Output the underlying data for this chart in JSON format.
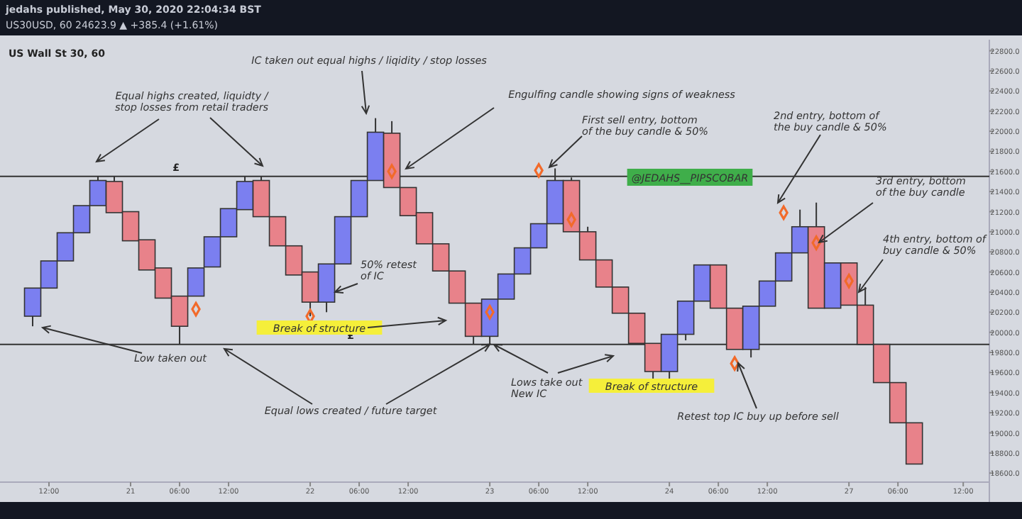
{
  "chart_data": {
    "type": "candlestick",
    "title": "US Wall St 30, 60",
    "categories": [
      null,
      "12:00",
      null,
      null,
      null,
      null,
      "21",
      null,
      null,
      "06:00",
      null,
      null,
      "12:00",
      null,
      null,
      null,
      null,
      "22",
      null,
      null,
      "06:00",
      null,
      null,
      "12:00",
      null,
      null,
      null,
      null,
      "23",
      null,
      null,
      "06:00",
      null,
      null,
      "12:00",
      null,
      null,
      null,
      null,
      "24",
      null,
      null,
      "06:00",
      null,
      null,
      "12:00",
      null,
      null,
      null,
      null,
      "27",
      null,
      null,
      "06:00",
      null,
      null,
      null,
      "12:00"
    ],
    "ohlc": [
      [
        20160,
        20440,
        20060,
        20440
      ],
      [
        20440,
        20710,
        20440,
        20710
      ],
      [
        20710,
        20990,
        20710,
        20990
      ],
      [
        20990,
        21260,
        20990,
        21260
      ],
      [
        21260,
        21550,
        21260,
        21510
      ],
      [
        21500,
        21550,
        21190,
        21190
      ],
      [
        21200,
        21200,
        20910,
        20910
      ],
      [
        20920,
        20920,
        20620,
        20620
      ],
      [
        20640,
        20640,
        20340,
        20340
      ],
      [
        20360,
        20360,
        19880,
        20060
      ],
      [
        20360,
        20640,
        20360,
        20640
      ],
      [
        20650,
        20950,
        20650,
        20950
      ],
      [
        20950,
        21230,
        20950,
        21230
      ],
      [
        21220,
        21550,
        21220,
        21500
      ],
      [
        21510,
        21550,
        21150,
        21150
      ],
      [
        21150,
        21150,
        20860,
        20860
      ],
      [
        20860,
        20860,
        20570,
        20570
      ],
      [
        20600,
        20600,
        20160,
        20300
      ],
      [
        20300,
        20680,
        20200,
        20680
      ],
      [
        20680,
        21150,
        20680,
        21150
      ],
      [
        21150,
        21510,
        21150,
        21510
      ],
      [
        21510,
        22130,
        21510,
        21990
      ],
      [
        21980,
        22100,
        21440,
        21440
      ],
      [
        21440,
        21440,
        21160,
        21160
      ],
      [
        21190,
        21190,
        20880,
        20880
      ],
      [
        20880,
        20880,
        20610,
        20610
      ],
      [
        20610,
        20610,
        20290,
        20290
      ],
      [
        20290,
        20290,
        19880,
        19960
      ],
      [
        19960,
        20330,
        19880,
        20330
      ],
      [
        20330,
        20580,
        20330,
        20580
      ],
      [
        20580,
        20840,
        20580,
        20840
      ],
      [
        20840,
        21080,
        20840,
        21080
      ],
      [
        21080,
        21630,
        21080,
        21510
      ],
      [
        21510,
        21540,
        21000,
        21000
      ],
      [
        21000,
        21050,
        20720,
        20720
      ],
      [
        20720,
        20720,
        20450,
        20450
      ],
      [
        20450,
        20450,
        20190,
        20190
      ],
      [
        20190,
        20190,
        19890,
        19890
      ],
      [
        19890,
        19890,
        19540,
        19610
      ],
      [
        19610,
        19980,
        19540,
        19980
      ],
      [
        19980,
        20310,
        19920,
        20310
      ],
      [
        20310,
        20670,
        20310,
        20670
      ],
      [
        20670,
        20670,
        20240,
        20240
      ],
      [
        20240,
        20240,
        19830,
        19830
      ],
      [
        19830,
        20260,
        19750,
        20260
      ],
      [
        20260,
        20510,
        20260,
        20510
      ],
      [
        20510,
        20790,
        20510,
        20790
      ],
      [
        20790,
        21220,
        20790,
        21050
      ],
      [
        21050,
        21290,
        20240,
        20240
      ],
      [
        20240,
        20690,
        20240,
        20690
      ],
      [
        20690,
        20690,
        20270,
        20270
      ],
      [
        20270,
        20450,
        19880,
        19880
      ],
      [
        19880,
        19880,
        19500,
        19500
      ],
      [
        19500,
        19500,
        19100,
        19100
      ],
      [
        19100,
        19100,
        18690,
        18690
      ],
      null,
      null,
      null
    ],
    "colors": [
      "#7b7ff0",
      "#7b7ff0",
      "#7b7ff0",
      "#7b7ff0",
      "#7b7ff0",
      "#e8828a",
      "#e8828a",
      "#e8828a",
      "#e8828a",
      "#e8828a",
      "#7b7ff0",
      "#7b7ff0",
      "#7b7ff0",
      "#7b7ff0",
      "#e8828a",
      "#e8828a",
      "#e8828a",
      "#e8828a",
      "#7b7ff0",
      "#7b7ff0",
      "#7b7ff0",
      "#7b7ff0",
      "#e8828a",
      "#e8828a",
      "#e8828a",
      "#e8828a",
      "#e8828a",
      "#e8828a",
      "#7b7ff0",
      "#7b7ff0",
      "#7b7ff0",
      "#7b7ff0",
      "#7b7ff0",
      "#e8828a",
      "#e8828a",
      "#e8828a",
      "#e8828a",
      "#e8828a",
      "#e8828a",
      "#7b7ff0",
      "#7b7ff0",
      "#7b7ff0",
      "#e8828a",
      "#e8828a",
      "#7b7ff0",
      "#7b7ff0",
      "#7b7ff0",
      "#7b7ff0",
      "#e8828a",
      "#7b7ff0",
      "#e8828a",
      "#e8828a",
      "#e8828a",
      "#e8828a",
      "#e8828a",
      null,
      null,
      null
    ],
    "series": [
      {
        "type": "scatter",
        "color": "#f26a2a",
        "marker": "diamond",
        "values": [
          null,
          null,
          null,
          null,
          null,
          null,
          null,
          null,
          null,
          null,
          20230,
          null,
          null,
          null,
          null,
          null,
          null,
          20160,
          null,
          null,
          null,
          null,
          21600,
          null,
          null,
          null,
          null,
          null,
          20200,
          null,
          null,
          21610,
          null,
          21120,
          null,
          null,
          null,
          null,
          null,
          null,
          null,
          null,
          null,
          19690,
          null,
          null,
          21190,
          null,
          20890,
          null,
          20510,
          null,
          null,
          null,
          null,
          null,
          null,
          null
        ]
      }
    ],
    "ylim": [
      18510,
      22910
    ],
    "yticks": [
      {
        "value": 18600,
        "label": "18600.0"
      },
      {
        "value": 18800,
        "label": "18800.0"
      },
      {
        "value": 19000,
        "label": "19000.0"
      },
      {
        "value": 19200,
        "label": "19200.0"
      },
      {
        "value": 19400,
        "label": "19400.0"
      },
      {
        "value": 19600,
        "label": "19600.0"
      },
      {
        "value": 19800,
        "label": "19800.0"
      },
      {
        "value": 20000,
        "label": "20000.0"
      },
      {
        "value": 20200,
        "label": "20200.0"
      },
      {
        "value": 20400,
        "label": "20400.0"
      },
      {
        "value": 20600,
        "label": "20600.0"
      },
      {
        "value": 20800,
        "label": "20800.0"
      },
      {
        "value": 21000,
        "label": "21000.0"
      },
      {
        "value": 21200,
        "label": "21200.0"
      },
      {
        "value": 21400,
        "label": "21400.0"
      },
      {
        "value": 21600,
        "label": "21600.0"
      },
      {
        "value": 21800,
        "label": "21800.0"
      },
      {
        "value": 22000,
        "label": "22000.0"
      },
      {
        "value": 22200,
        "label": "22200.0"
      },
      {
        "value": 22400,
        "label": "22400.0"
      },
      {
        "value": 22600,
        "label": "22600.0"
      },
      {
        "value": 22800,
        "label": "22800.0"
      }
    ],
    "ref_lines": [
      {
        "axis": "y",
        "value": 21550,
        "label": "£",
        "color": "#333333"
      },
      {
        "axis": "y",
        "value": 19880,
        "label": "£",
        "color": "#333333"
      }
    ],
    "annotations": [
      "jedahs published, May 30, 2020 22:04:34 BST",
      "US30USD, 60  24623.9 ▲ +385.4 (+1.61%)",
      "Equal highs created, liquidty / stop losses from retail traders",
      "IC taken out equal highs / liqidity / stop losses",
      "Engulfing candle showing signs of weakness",
      "First sell entry, bottom of the buy candle & 50%",
      "@JEDAHS__PIPSCOBAR",
      "2nd entry, bottom of the buy candle & 50%",
      "3rd entry, bottom of the buy candle",
      "4th entry, bottom of buy candle & 50%",
      "50% retest of IC",
      "Break of structure",
      "Low taken out",
      {
        "text": "Equal lows created / future target",
        "x": "23",
        "y": 19880
      },
      "Lows take out New IC",
      "Break of structure",
      "Retest top IC buy up before sell"
    ]
  }
}
